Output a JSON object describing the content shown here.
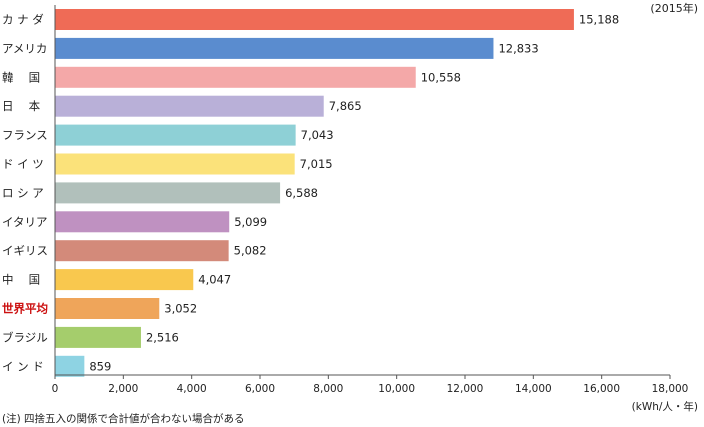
{
  "chart_data": {
    "type": "bar",
    "orientation": "horizontal",
    "title": "",
    "year_note": "(2015年)",
    "unit_label": "(kWh/人・年)",
    "footnote": "(注) 四捨五入の関係で合計値が合わない場合がある",
    "categories": [
      "カナダ",
      "アメリカ",
      "韓国",
      "日本",
      "フランス",
      "ドイツ",
      "ロシア",
      "イタリア",
      "イギリス",
      "中国",
      "世界平均",
      "ブラジル",
      "インド"
    ],
    "category_labels": [
      "カ ナ ダ",
      "アメリカ",
      "韓　 国",
      "日　 本",
      "フランス",
      "ド イ ツ",
      "ロ シ ア",
      "イタリア",
      "イギリス",
      "中　 国",
      "世界平均",
      "ブラジル",
      "イ ン ド"
    ],
    "values": [
      15188,
      12833,
      10558,
      7865,
      7043,
      7015,
      6588,
      5099,
      5082,
      4047,
      3052,
      2516,
      859
    ],
    "value_labels": [
      "15,188",
      "12,833",
      "10,558",
      "7,865",
      "7,043",
      "7,015",
      "6,588",
      "5,099",
      "5,082",
      "4,047",
      "3,052",
      "2,516",
      "859"
    ],
    "bar_colors": [
      "#ef6b56",
      "#5a8ccf",
      "#f4a8a8",
      "#b9b0d8",
      "#8ed0d6",
      "#fbe27a",
      "#b1c0bb",
      "#bf91c1",
      "#d38a7a",
      "#f9c84e",
      "#efa55a",
      "#a5cd6c",
      "#8ed3e3"
    ],
    "label_colors": [
      "#222222",
      "#222222",
      "#222222",
      "#222222",
      "#222222",
      "#222222",
      "#222222",
      "#222222",
      "#222222",
      "#222222",
      "#cc1111",
      "#222222",
      "#222222"
    ],
    "x_ticks": [
      0,
      2000,
      4000,
      6000,
      8000,
      10000,
      12000,
      14000,
      16000,
      18000
    ],
    "x_tick_labels": [
      "0",
      "2,000",
      "4,000",
      "6,000",
      "8,000",
      "10,000",
      "12,000",
      "14,000",
      "16,000",
      "18,000"
    ],
    "xlim": [
      0,
      18000
    ],
    "grid": false,
    "legend": "none"
  }
}
